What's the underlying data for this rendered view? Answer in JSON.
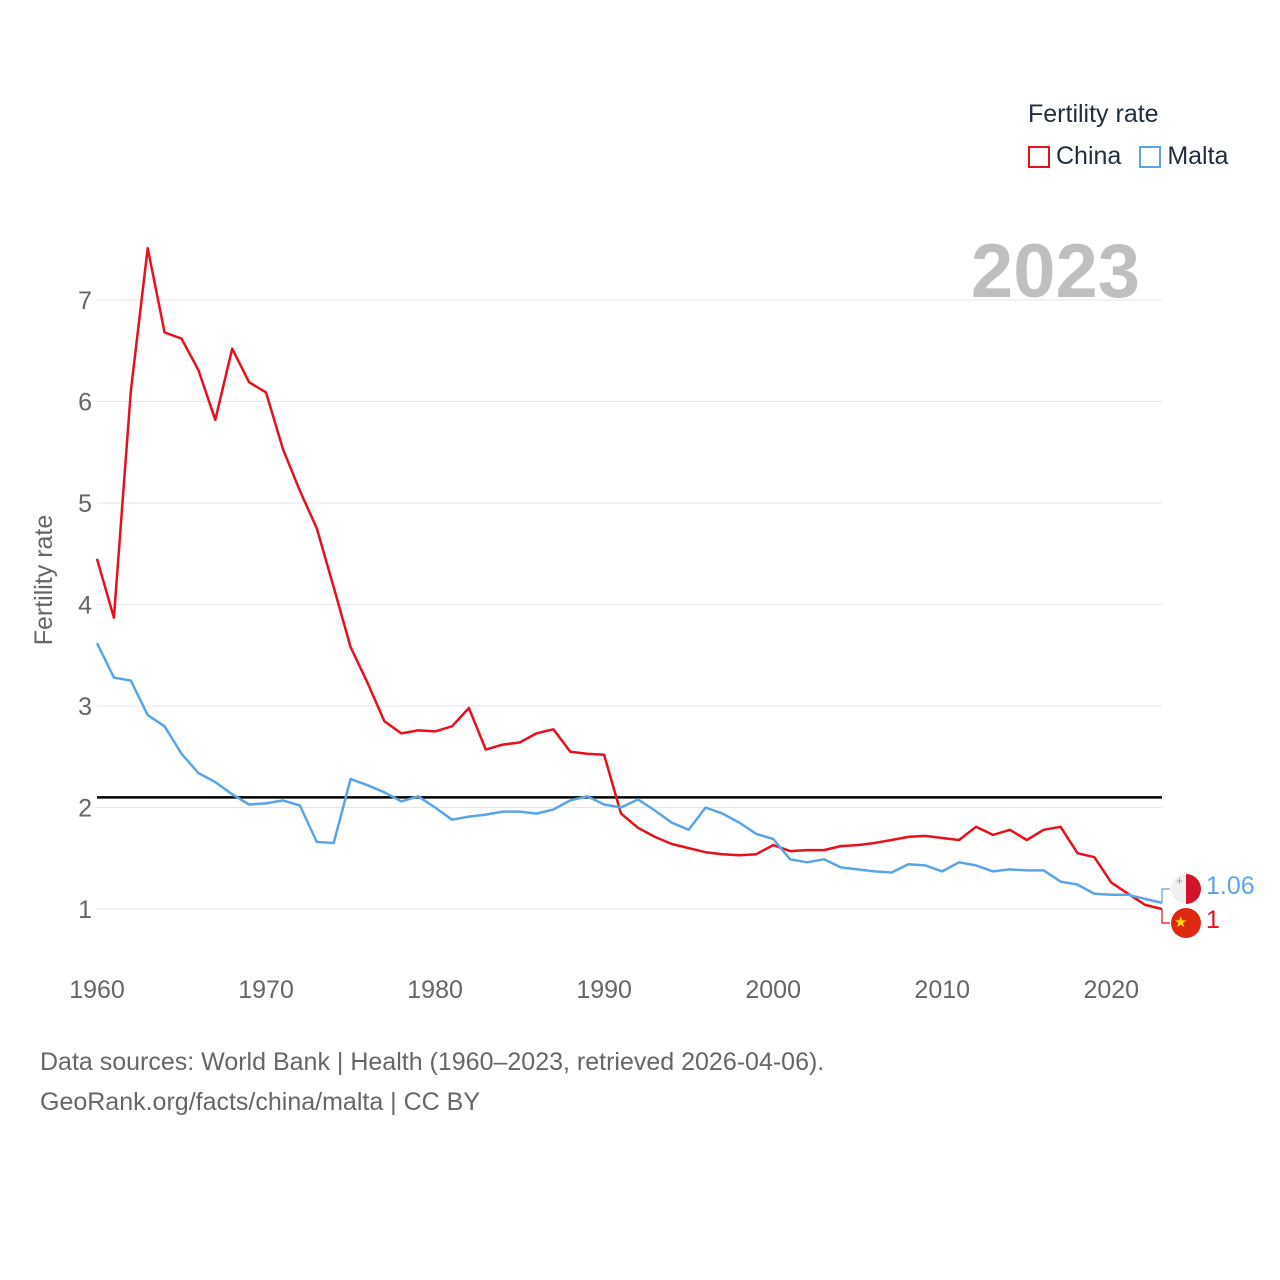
{
  "legend": {
    "title": "Fertility rate",
    "items": [
      {
        "name": "China",
        "color": "#e8101c"
      },
      {
        "name": "Malta",
        "color": "#5aa5e8"
      }
    ]
  },
  "year_label": "2023",
  "footer": {
    "line1": "Data sources: World Bank | Health (1960–2023, retrieved 2026-04-06).",
    "line2": "GeoRank.org/facts/china/malta | CC BY"
  },
  "end_labels": {
    "malta": "1.06",
    "china": "1"
  },
  "chart_data": {
    "type": "line",
    "title": "",
    "xlabel": "",
    "ylabel": "Fertility rate",
    "xlim": [
      1960,
      2023
    ],
    "ylim": [
      0.5,
      7.7
    ],
    "x_ticks": [
      1960,
      1970,
      1980,
      1990,
      2000,
      2010,
      2020
    ],
    "y_ticks": [
      1,
      2,
      3,
      4,
      5,
      6,
      7
    ],
    "reference_line": {
      "y": 2.1,
      "color": "#000000"
    },
    "x": [
      1960,
      1961,
      1962,
      1963,
      1964,
      1965,
      1966,
      1967,
      1968,
      1969,
      1970,
      1971,
      1972,
      1973,
      1974,
      1975,
      1976,
      1977,
      1978,
      1979,
      1980,
      1981,
      1982,
      1983,
      1984,
      1985,
      1986,
      1987,
      1988,
      1989,
      1990,
      1991,
      1992,
      1993,
      1994,
      1995,
      1996,
      1997,
      1998,
      1999,
      2000,
      2001,
      2002,
      2003,
      2004,
      2005,
      2006,
      2007,
      2008,
      2009,
      2010,
      2011,
      2012,
      2013,
      2014,
      2015,
      2016,
      2017,
      2018,
      2019,
      2020,
      2021,
      2022,
      2023
    ],
    "series": [
      {
        "name": "China",
        "color": "#e8101c",
        "values": [
          4.45,
          3.87,
          6.1,
          7.51,
          6.68,
          6.62,
          6.31,
          5.82,
          6.52,
          6.19,
          6.09,
          5.53,
          5.12,
          4.75,
          4.17,
          3.58,
          3.23,
          2.85,
          2.73,
          2.76,
          2.75,
          2.8,
          2.98,
          2.57,
          2.62,
          2.64,
          2.73,
          2.77,
          2.55,
          2.53,
          2.52,
          1.94,
          1.8,
          1.71,
          1.64,
          1.6,
          1.56,
          1.54,
          1.53,
          1.54,
          1.63,
          1.57,
          1.58,
          1.58,
          1.62,
          1.63,
          1.65,
          1.68,
          1.71,
          1.72,
          1.7,
          1.68,
          1.81,
          1.73,
          1.78,
          1.68,
          1.78,
          1.81,
          1.55,
          1.51,
          1.26,
          1.15,
          1.04,
          1.0
        ]
      },
      {
        "name": "Malta",
        "color": "#5aa5e8",
        "values": [
          3.62,
          3.28,
          3.25,
          2.91,
          2.8,
          2.53,
          2.34,
          2.25,
          2.13,
          2.03,
          2.04,
          2.07,
          2.02,
          1.66,
          1.65,
          2.28,
          2.22,
          2.15,
          2.06,
          2.11,
          2.0,
          1.88,
          1.91,
          1.93,
          1.96,
          1.96,
          1.94,
          1.98,
          2.07,
          2.11,
          2.03,
          2.0,
          2.08,
          1.97,
          1.85,
          1.78,
          2.0,
          1.94,
          1.85,
          1.74,
          1.69,
          1.49,
          1.46,
          1.49,
          1.41,
          1.39,
          1.37,
          1.36,
          1.44,
          1.43,
          1.37,
          1.46,
          1.43,
          1.37,
          1.39,
          1.38,
          1.38,
          1.27,
          1.24,
          1.15,
          1.14,
          1.14,
          1.1,
          1.06
        ]
      }
    ]
  }
}
